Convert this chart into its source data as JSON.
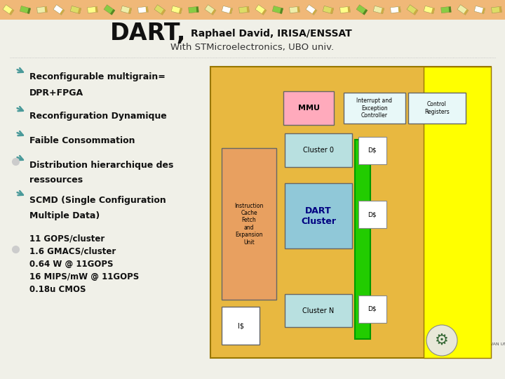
{
  "bg_color": "#f0f0e8",
  "header_bg": "#f0b878",
  "title_dart": "DART,",
  "title_subtitle": "Raphael David, IRISA/ENSSAT",
  "title_sub2": "With STMicroelectronics, UBO univ.",
  "bullet_items": [
    [
      "Reconfigurable multigrain=",
      "DPR+FPGA"
    ],
    [
      "Reconfiguration Dynamique"
    ],
    [
      "Faible Consommation"
    ],
    [
      "Distribution hierarchique des",
      "ressources"
    ],
    [
      "SCMD (Single Configuration",
      "Multiple Data)"
    ]
  ],
  "stats_lines": [
    "11 GOPS/cluster",
    "1.6 GMACS/cluster",
    "0.64 W @ 11GOPS",
    "16 MIPS/mW @ 11GOPS",
    "0.18u CMOS"
  ],
  "bullet_color": "#4a9a9a",
  "text_color": "#111111",
  "dart_color": "#111111",
  "sub2_color": "#333333",
  "stats_color": "#111111",
  "diagram_outer_bg": "#e8b840",
  "diagram_yellow_right_bg": "#ffff00",
  "cluster_color": "#b8e0e0",
  "dart_cluster_color": "#90c8d8",
  "dart_cluster_text_color": "#000080",
  "mmu_color": "#ffaabc",
  "instruction_color": "#e8a060",
  "is_color": "#ffffff",
  "green_bar_color": "#22cc00",
  "ds_color": "#c8e8e8",
  "core_memory_color": "#ffff88",
  "interrupt_color": "#e8f8f8",
  "control_color": "#e8f8f8"
}
